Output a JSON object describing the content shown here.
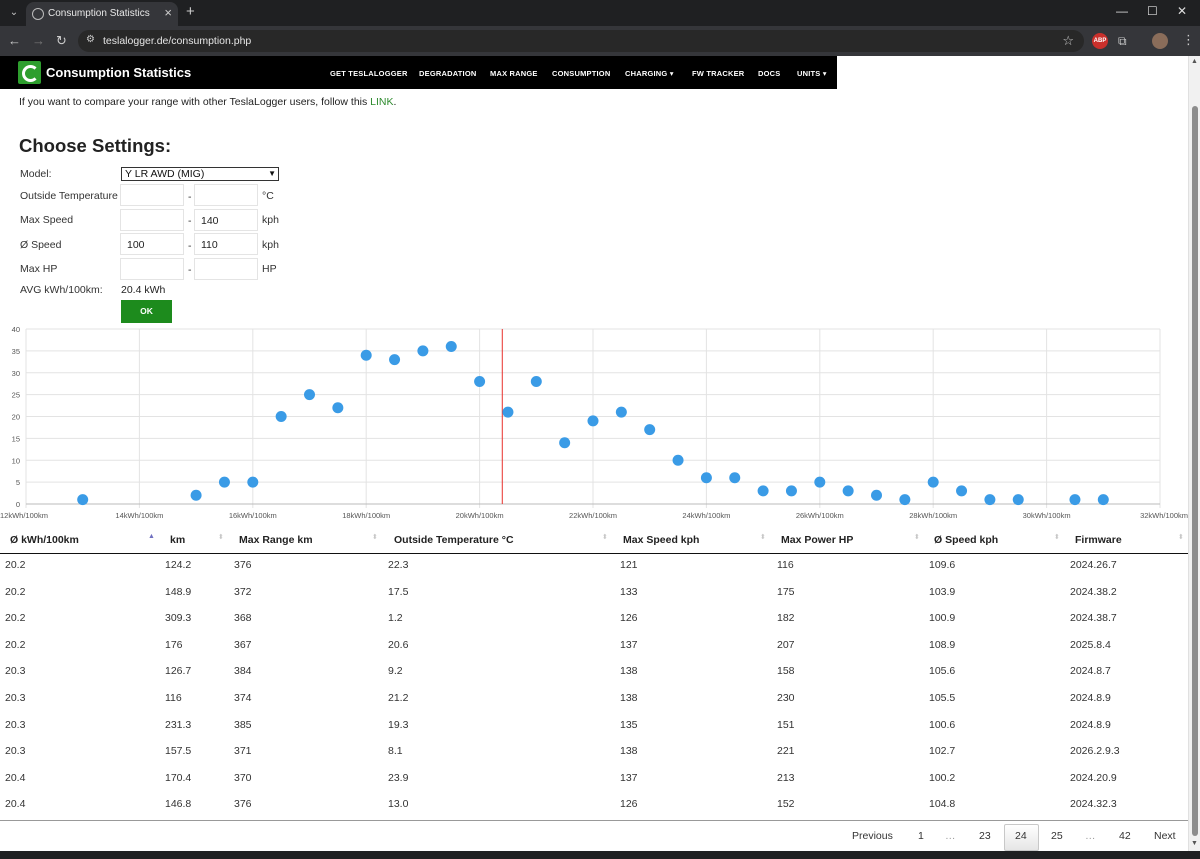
{
  "browser": {
    "tab_title": "Consumption Statistics",
    "url": "teslalogger.de/consumption.php"
  },
  "navbar": {
    "brand": "Consumption Statistics",
    "links": [
      "GET TESLALOGGER",
      "DEGRADATION",
      "MAX RANGE",
      "CONSUMPTION",
      "CHARGING",
      "FW TRACKER",
      "DOCS",
      "UNITS"
    ]
  },
  "intro": {
    "text": "If you want to compare your range with other TeslaLogger users, follow this",
    "link": "LINK",
    "end": "."
  },
  "settings": {
    "title": "Choose Settings:",
    "model_label": "Model:",
    "model_value": "Y LR AWD (MIG)",
    "outside_temp_label": "Outside Temperature",
    "outside_temp_from": "",
    "outside_temp_to": "",
    "outside_temp_unit": "°C",
    "max_speed_label": "Max Speed",
    "max_speed_from": "",
    "max_speed_to": "140",
    "max_speed_unit": "kph",
    "avg_speed_label": "Ø Speed",
    "avg_speed_from": "100",
    "avg_speed_to": "110",
    "avg_speed_unit": "kph",
    "max_hp_label": "Max HP",
    "max_hp_from": "",
    "max_hp_to": "",
    "max_hp_unit": "HP",
    "dash": "-",
    "avg_label": "AVG kWh/100km:",
    "avg_value": "20.4 kWh",
    "ok_label": "OK"
  },
  "chart_data": {
    "type": "scatter",
    "xlim": [
      12,
      32
    ],
    "ylim": [
      0,
      40
    ],
    "x_ticks": [
      "12kWh/100km",
      "14kWh/100km",
      "16kWh/100km",
      "18kWh/100km",
      "20kWh/100km",
      "22kWh/100km",
      "24kWh/100km",
      "26kWh/100km",
      "28kWh/100km",
      "30kWh/100km",
      "32kWh/100km"
    ],
    "x_tick_values": [
      12,
      14,
      16,
      18,
      20,
      22,
      24,
      26,
      28,
      30,
      32
    ],
    "y_ticks": [
      "0",
      "5",
      "10",
      "15",
      "20",
      "25",
      "30",
      "35",
      "40"
    ],
    "y_tick_values": [
      0,
      5,
      10,
      15,
      20,
      25,
      30,
      35,
      40
    ],
    "avg_line_x": 20.4,
    "grid": true,
    "point_color": "#3a9be6",
    "avg_line_color": "#e8302c",
    "points": [
      {
        "x": 13.0,
        "y": 1
      },
      {
        "x": 15.0,
        "y": 2
      },
      {
        "x": 15.5,
        "y": 5
      },
      {
        "x": 16.0,
        "y": 5
      },
      {
        "x": 16.5,
        "y": 20
      },
      {
        "x": 17.0,
        "y": 25
      },
      {
        "x": 17.5,
        "y": 22
      },
      {
        "x": 18.0,
        "y": 34
      },
      {
        "x": 18.5,
        "y": 33
      },
      {
        "x": 19.0,
        "y": 35
      },
      {
        "x": 19.5,
        "y": 36
      },
      {
        "x": 20.0,
        "y": 28
      },
      {
        "x": 20.5,
        "y": 21
      },
      {
        "x": 21.0,
        "y": 28
      },
      {
        "x": 21.5,
        "y": 14
      },
      {
        "x": 22.0,
        "y": 19
      },
      {
        "x": 22.5,
        "y": 21
      },
      {
        "x": 23.0,
        "y": 17
      },
      {
        "x": 23.5,
        "y": 10
      },
      {
        "x": 24.0,
        "y": 6
      },
      {
        "x": 24.5,
        "y": 6
      },
      {
        "x": 25.0,
        "y": 3
      },
      {
        "x": 25.5,
        "y": 3
      },
      {
        "x": 26.0,
        "y": 5
      },
      {
        "x": 26.5,
        "y": 3
      },
      {
        "x": 27.0,
        "y": 2
      },
      {
        "x": 27.5,
        "y": 1
      },
      {
        "x": 28.0,
        "y": 5
      },
      {
        "x": 28.5,
        "y": 3
      },
      {
        "x": 29.0,
        "y": 1
      },
      {
        "x": 29.5,
        "y": 1
      },
      {
        "x": 30.5,
        "y": 1
      },
      {
        "x": 31.0,
        "y": 1
      }
    ]
  },
  "table": {
    "headers": [
      "Ø kWh/100km",
      "km",
      "Max Range km",
      "Outside Temperature °C",
      "Max Speed kph",
      "Max Power HP",
      "Ø Speed kph",
      "Firmware"
    ],
    "rows": [
      [
        "20.2",
        "124.2",
        "376",
        "22.3",
        "121",
        "116",
        "109.6",
        "2024.26.7"
      ],
      [
        "20.2",
        "148.9",
        "372",
        "17.5",
        "133",
        "175",
        "103.9",
        "2024.38.2"
      ],
      [
        "20.2",
        "309.3",
        "368",
        "1.2",
        "126",
        "182",
        "100.9",
        "2024.38.7"
      ],
      [
        "20.2",
        "176",
        "367",
        "20.6",
        "137",
        "207",
        "108.9",
        "2025.8.4"
      ],
      [
        "20.3",
        "126.7",
        "384",
        "9.2",
        "138",
        "158",
        "105.6",
        "2024.8.7"
      ],
      [
        "20.3",
        "116",
        "374",
        "21.2",
        "138",
        "230",
        "105.5",
        "2024.8.9"
      ],
      [
        "20.3",
        "231.3",
        "385",
        "19.3",
        "135",
        "151",
        "100.6",
        "2024.8.9"
      ],
      [
        "20.3",
        "157.5",
        "371",
        "8.1",
        "138",
        "221",
        "102.7",
        "2026.2.9.3"
      ],
      [
        "20.4",
        "170.4",
        "370",
        "23.9",
        "137",
        "213",
        "100.2",
        "2024.20.9"
      ],
      [
        "20.4",
        "146.8",
        "376",
        "13.0",
        "126",
        "152",
        "104.8",
        "2024.32.3"
      ]
    ]
  },
  "pagination": {
    "previous": "Previous",
    "pages": [
      "1",
      "…",
      "23",
      "24",
      "25",
      "…",
      "42"
    ],
    "current": "24",
    "next": "Next"
  }
}
